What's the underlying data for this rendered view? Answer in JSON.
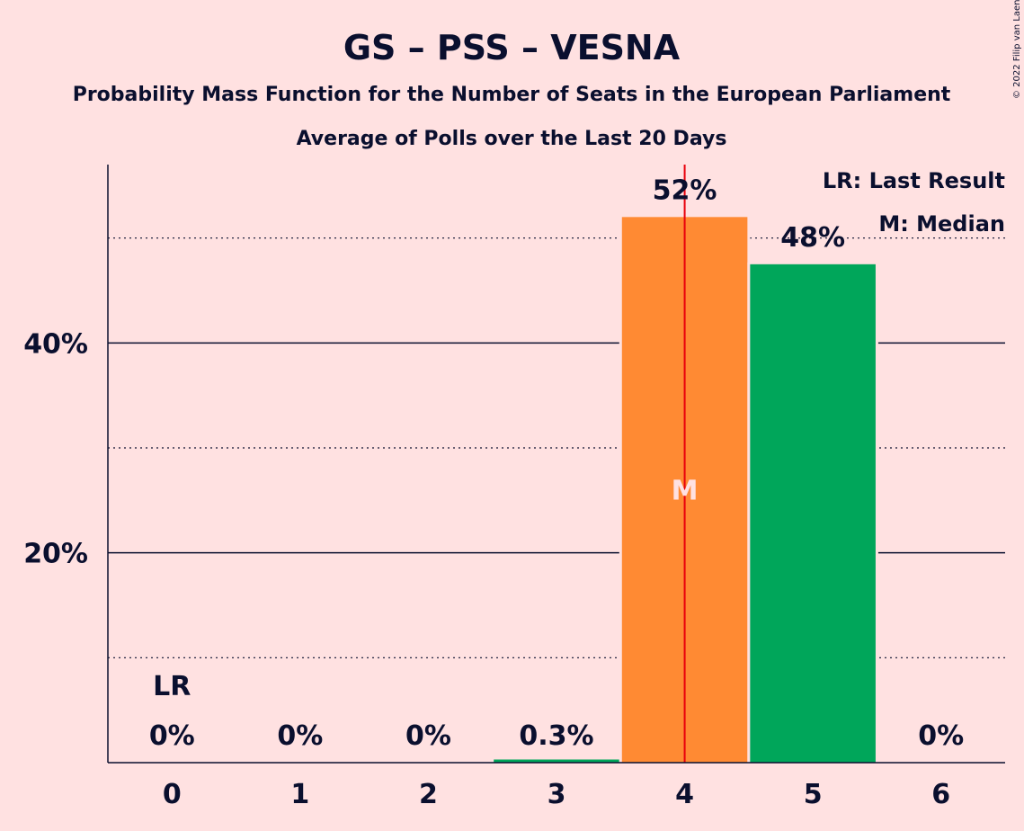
{
  "chart_data": {
    "type": "bar",
    "title": "GS – PSS – VESNA",
    "subtitle1": "Probability Mass Function for the Number of Seats in the European Parliament",
    "subtitle2": "Average of Polls over the Last 20 Days",
    "copyright": "© 2022 Filip van Laenen",
    "categories": [
      "0",
      "1",
      "2",
      "3",
      "4",
      "5",
      "6"
    ],
    "values": [
      0,
      0,
      0,
      0.3,
      52,
      47.5,
      0
    ],
    "value_labels": [
      "0%",
      "0%",
      "0%",
      "0.3%",
      "52%",
      "48%",
      "0%"
    ],
    "bar_colors": [
      "#00A65A",
      "#00A65A",
      "#00A65A",
      "#00A65A",
      "#FF8A33",
      "#00A65A",
      "#00A65A"
    ],
    "ylim": [
      0,
      57
    ],
    "yticks": [
      20,
      40
    ],
    "ytick_labels": [
      "20%",
      "40%"
    ],
    "minor_gridlines": [
      10,
      30,
      50
    ],
    "last_result_index": 0,
    "last_result_label": "LR",
    "median_index": 4,
    "median_label": "M",
    "threshold_x": 4.5,
    "threshold_color": "#E8000B",
    "legend": [
      "LR: Last Result",
      "M: Median"
    ],
    "legend_position": "top-right",
    "colors": {
      "background": "#FFE1E1",
      "text": "#0A0F2E",
      "orange": "#FF8A33",
      "green": "#00A65A",
      "red": "#E8000B"
    }
  }
}
